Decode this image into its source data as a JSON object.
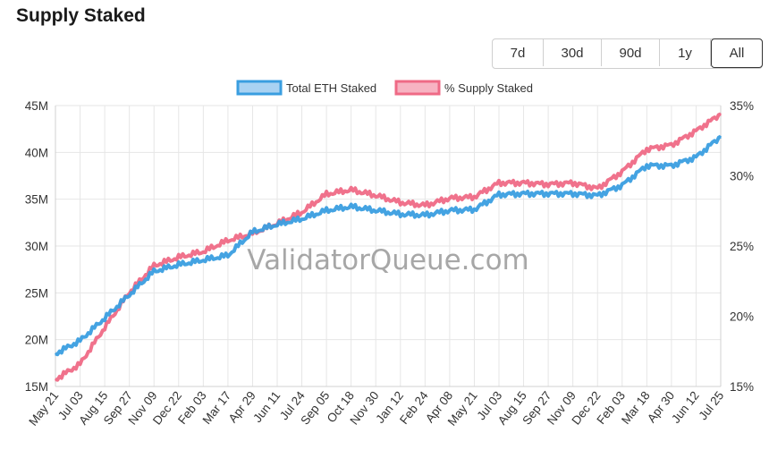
{
  "header": {
    "title": "Supply Staked"
  },
  "range_buttons": [
    "7d",
    "30d",
    "90d",
    "1y",
    "All"
  ],
  "active_range": "All",
  "watermark": "ValidatorQueue.com",
  "colors": {
    "eth": "#3a9ee0",
    "eth_fill": "#a9d2f2",
    "pct": "#ef6a86",
    "pct_fill": "#f7b3c2",
    "grid": "#e6e6e6"
  },
  "chart_data": {
    "type": "line",
    "title": "",
    "xlabel": "",
    "ylabel": "",
    "legend_position": "top",
    "grid": true,
    "x_tick_labels": [
      "May 21",
      "Jul 03",
      "Aug 15",
      "Sep 27",
      "Nov 09",
      "Dec 22",
      "Feb 03",
      "Mar 17",
      "Apr 29",
      "Jun 11",
      "Jul 24",
      "Sep 05",
      "Oct 18",
      "Nov 30",
      "Jan 12",
      "Feb 24",
      "Apr 08",
      "May 21",
      "Jul 03",
      "Aug 15",
      "Sep 27",
      "Nov 09",
      "Dec 22",
      "Feb 03",
      "Mar 18",
      "Apr 30",
      "Jun 12",
      "Jul 25"
    ],
    "y_left": {
      "ticks": [
        "15M",
        "20M",
        "25M",
        "30M",
        "35M",
        "40M",
        "45M"
      ],
      "ylim": [
        15000000,
        45000000
      ]
    },
    "y_right": {
      "ticks": [
        "15%",
        "20%",
        "25%",
        "30%",
        "35%"
      ],
      "ylim": [
        15,
        35
      ]
    },
    "x": [
      0,
      1,
      2,
      3,
      4,
      5,
      6,
      7,
      8,
      9,
      10,
      11,
      12,
      13,
      14,
      15,
      16,
      17,
      18,
      19,
      20,
      21,
      22,
      23,
      24,
      25,
      26,
      27
    ],
    "series": [
      {
        "name": "Total ETH Staked",
        "axis": "left",
        "values": [
          18500000,
          19900000,
          22300000,
          24800000,
          27300000,
          28000000,
          28500000,
          29000000,
          31500000,
          32300000,
          32900000,
          33800000,
          34200000,
          33800000,
          33400000,
          33300000,
          33800000,
          33900000,
          35500000,
          35600000,
          35600000,
          35600000,
          35400000,
          36500000,
          38600000,
          38600000,
          39500000,
          41700000
        ]
      },
      {
        "name": "% Supply Staked",
        "axis": "right",
        "values": [
          15.5,
          16.6,
          19.2,
          21.7,
          23.6,
          24.2,
          24.6,
          25.4,
          25.9,
          26.6,
          27.4,
          28.7,
          29.0,
          28.6,
          28.1,
          27.9,
          28.4,
          28.5,
          29.5,
          29.5,
          29.4,
          29.5,
          29.1,
          30.3,
          31.9,
          32.2,
          33.2,
          34.4
        ]
      }
    ]
  }
}
